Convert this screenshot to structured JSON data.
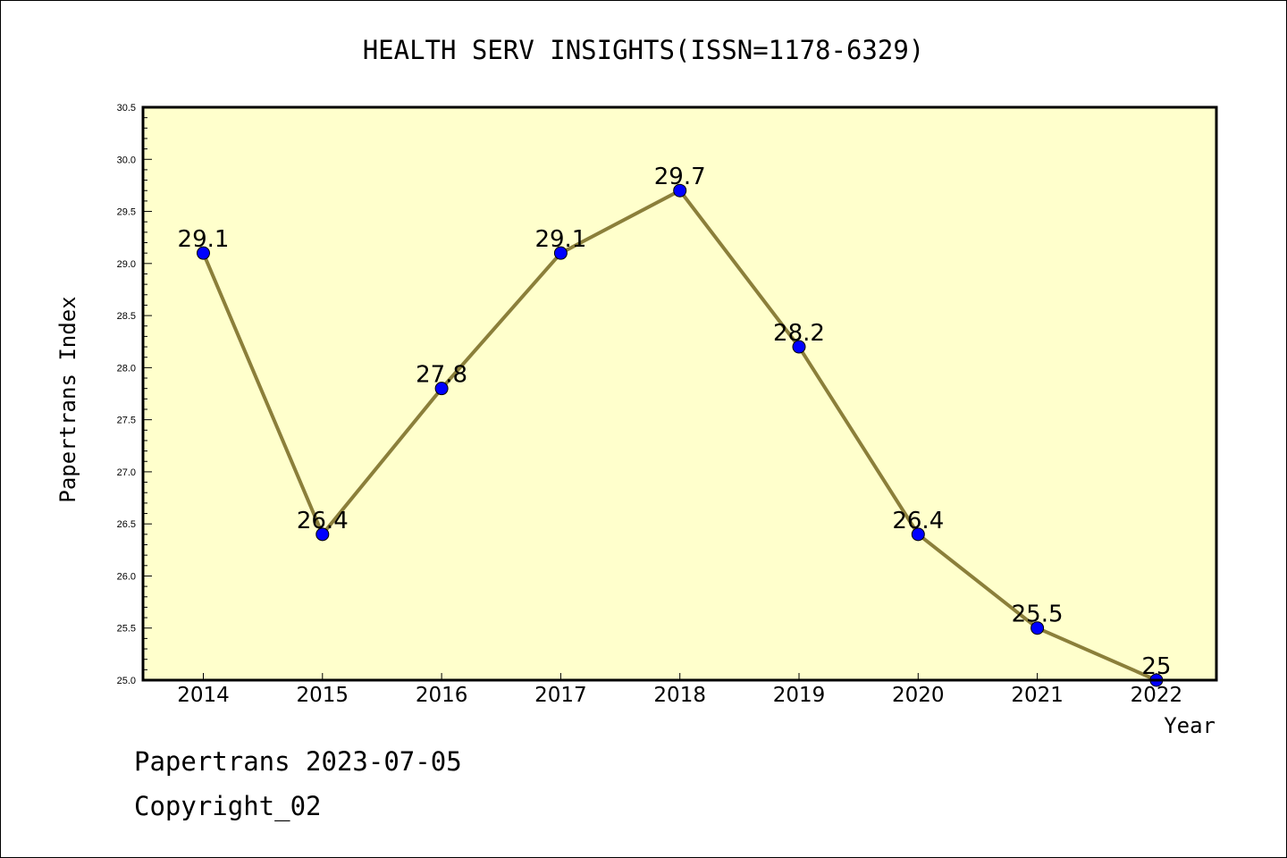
{
  "footer": {
    "line1": "Papertrans 2023-07-05",
    "line2": "Copyright_02"
  },
  "colors": {
    "plot_background": "#ffffcc",
    "line": "#8b7f3a",
    "marker": "#0000ff"
  },
  "chart_data": {
    "type": "line",
    "title": "HEALTH SERV INSIGHTS(ISSN=1178-6329)",
    "xlabel": "Year",
    "ylabel": "Papertrans Index",
    "categories": [
      "2014",
      "2015",
      "2016",
      "2017",
      "2018",
      "2019",
      "2020",
      "2021",
      "2022"
    ],
    "series": [
      {
        "values": [
          29.1,
          26.4,
          27.8,
          29.1,
          29.7,
          28.2,
          26.4,
          25.5,
          25.0
        ],
        "labels": [
          "29.1",
          "26.4",
          "27.8",
          "29.1",
          "29.7",
          "28.2",
          "26.4",
          "25.5",
          "25"
        ]
      }
    ],
    "ylim": [
      25.0,
      30.5
    ],
    "yticks": [
      "25.0",
      "25.5",
      "26.0",
      "26.5",
      "27.0",
      "27.5",
      "28.0",
      "28.5",
      "29.0",
      "29.5",
      "30.0",
      "30.5"
    ],
    "grid": false,
    "legend": "none"
  }
}
